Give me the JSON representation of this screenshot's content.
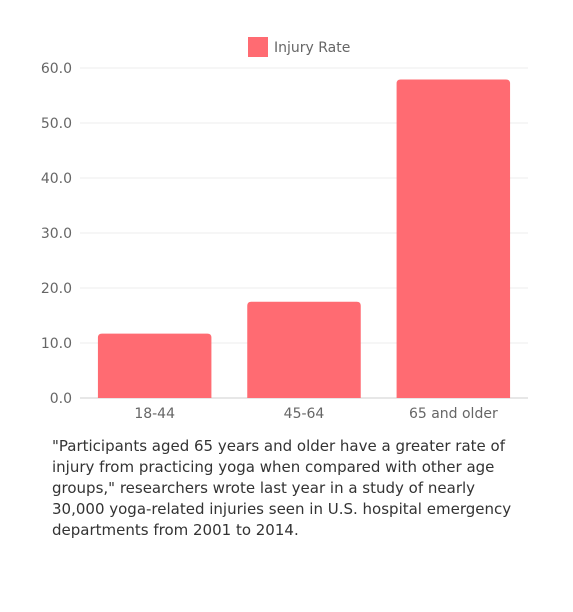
{
  "chart_data": {
    "type": "bar",
    "categories": [
      "18-44",
      "45-64",
      "65 and older"
    ],
    "series": [
      {
        "name": "Injury Rate",
        "values": [
          11.7,
          17.5,
          57.9
        ]
      }
    ],
    "ylim": [
      0,
      60
    ],
    "yticks": [
      "0.0",
      "10.0",
      "20.0",
      "30.0",
      "40.0",
      "50.0",
      "60.0"
    ],
    "grid": true,
    "legend": "top-center",
    "bar_color": "#ff6b72"
  },
  "caption": "\"Participants aged 65 years and older have a greater rate of injury from practicing yoga when compared with other age groups,\" researchers wrote last year in a study of nearly 30,000 yoga-related injuries seen in U.S. hospital emergency departments from 2001 to 2014."
}
